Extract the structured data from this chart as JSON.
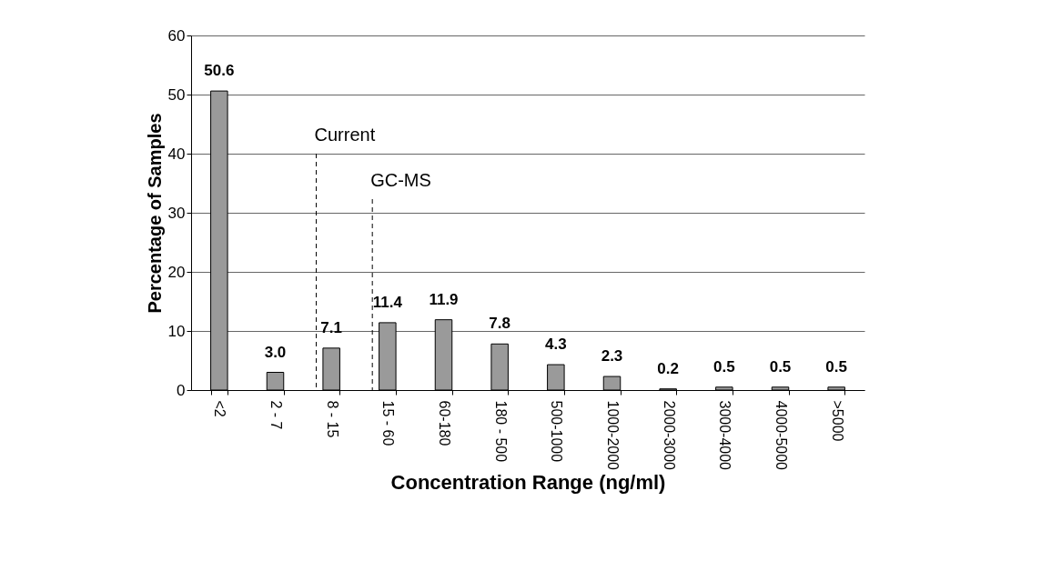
{
  "chart_data": {
    "type": "bar",
    "xlabel": "Concentration Range (ng/ml)",
    "ylabel": "Percentage of Samples",
    "categories": [
      "<2",
      "2 - 7",
      "8 - 15",
      "15 - 60",
      "60-180",
      "180 - 500",
      "500-1000",
      "1000-2000",
      "2000-3000",
      "3000-4000",
      "4000-5000",
      ">5000"
    ],
    "values": [
      50.6,
      3.0,
      7.1,
      11.4,
      11.9,
      7.8,
      4.3,
      2.3,
      0.2,
      0.5,
      0.5,
      0.5
    ],
    "value_labels": [
      "50.6",
      "3.0",
      "7.1",
      "11.4",
      "11.9",
      "7.8",
      "4.3",
      "2.3",
      "0.2",
      "0.5",
      "0.5",
      "0.5"
    ],
    "color": "#9a9a9a",
    "ylim": [
      0,
      60
    ],
    "yticks": [
      0,
      10,
      20,
      30,
      40,
      50,
      60
    ],
    "grid": "y",
    "ref_lines": [
      {
        "axis": "x",
        "value": "8 - 15",
        "label": "Current",
        "line_style": "dashed"
      },
      {
        "axis": "x",
        "value": "15 - 60",
        "label": "GC-MS",
        "line_style": "dashed"
      }
    ]
  }
}
